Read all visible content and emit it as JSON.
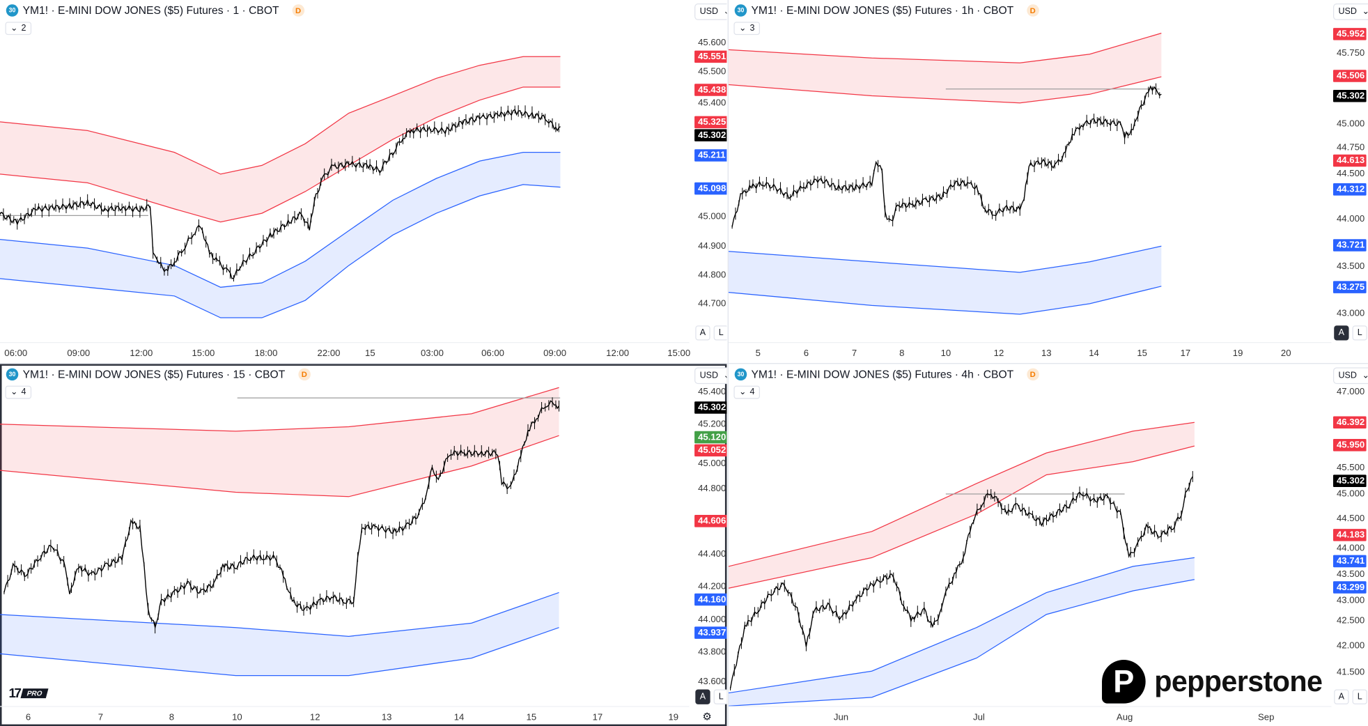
{
  "colors": {
    "red": "#f23645",
    "blue": "#2962ff",
    "green": "#43a047",
    "black": "#000000",
    "red_fill": "rgba(242,54,69,0.12)",
    "blue_fill": "rgba(41,98,255,0.12)"
  },
  "panels": [
    {
      "symbol_badge": "30",
      "title": "YM1! · E-MINI DOW JONES ($5) Futures · 1 · CBOT",
      "d_badge": "D",
      "collapse_count": "2",
      "currency": "USD",
      "a_label": "A",
      "l_label": "L",
      "ylim": [
        44.568,
        45.747
      ],
      "price_ticks": [
        "45.600",
        "45.500",
        "45.400",
        "45.000",
        "44.900",
        "44.800",
        "44.700"
      ],
      "badges": [
        {
          "value": "45.551",
          "color": "#f23645"
        },
        {
          "value": "45.438",
          "color": "#f23645"
        },
        {
          "value": "45.325",
          "color": "#f23645"
        },
        {
          "value": "45.302",
          "color": "#000000"
        },
        {
          "value": "45.211",
          "color": "#2962ff"
        },
        {
          "value": "45.098",
          "color": "#2962ff"
        }
      ],
      "x_ticks": [
        {
          "label": "06:00",
          "at": 2.3
        },
        {
          "label": "09:00",
          "at": 11.4
        },
        {
          "label": "12:00",
          "at": 20.5
        },
        {
          "label": "15:00",
          "at": 29.5
        },
        {
          "label": "18:00",
          "at": 38.6
        },
        {
          "label": "22:00",
          "at": 47.7
        },
        {
          "label": "15",
          "at": 53.7
        },
        {
          "label": "03:00",
          "at": 62.7
        },
        {
          "label": "06:00",
          "at": 71.5
        },
        {
          "label": "09:00",
          "at": 80.5
        },
        {
          "label": "12:00",
          "at": 89.6
        },
        {
          "label": "15:00",
          "at": 98.5
        }
      ],
      "series": {
        "x": [
          0,
          2.5,
          5.1,
          7.6,
          10.1,
          12.7,
          15.2,
          17.7,
          20.3,
          21.8,
          22.2,
          22.8,
          24.1,
          25.3,
          26.6,
          27.8,
          29.1,
          30.4,
          31.6,
          32.9,
          33.9,
          34.8,
          36.7,
          39.2,
          41.8,
          43.7,
          44.9,
          45.6,
          46.8,
          48.1,
          50.6,
          53.2,
          55.1,
          57,
          58.2,
          59.5,
          62,
          64.6,
          67.1,
          69.6,
          72.2,
          74.7,
          77.2,
          79.1,
          80.4,
          81.3
        ],
        "close": [
          45.01,
          44.98,
          45.025,
          45.031,
          45.037,
          45.049,
          45.025,
          45.031,
          45.025,
          45.037,
          44.875,
          44.845,
          44.814,
          44.845,
          44.89,
          44.935,
          44.971,
          44.875,
          44.845,
          44.814,
          44.79,
          44.829,
          44.875,
          44.935,
          44.98,
          45.01,
          44.959,
          45.055,
          45.13,
          45.17,
          45.182,
          45.176,
          45.161,
          45.221,
          45.266,
          45.296,
          45.302,
          45.296,
          45.326,
          45.341,
          45.35,
          45.362,
          45.35,
          45.341,
          45.311,
          45.302
        ]
      },
      "bands": {
        "x": [
          0,
          12.7,
          25.3,
          32,
          38,
          44.3,
          50.6,
          57,
          63.3,
          69.6,
          75.9,
          81.3
        ],
        "upper_top": [
          45.327,
          45.297,
          45.222,
          45.147,
          45.177,
          45.252,
          45.357,
          45.417,
          45.477,
          45.522,
          45.552,
          45.552
        ],
        "upper_bottom": [
          45.147,
          45.117,
          45.027,
          44.982,
          45.012,
          45.087,
          45.177,
          45.267,
          45.342,
          45.402,
          45.447,
          45.447
        ],
        "lower_top": [
          44.922,
          44.892,
          44.832,
          44.757,
          44.772,
          44.847,
          44.952,
          45.057,
          45.132,
          45.192,
          45.222,
          45.222
        ],
        "lower_bottom": [
          44.787,
          44.757,
          44.727,
          44.652,
          44.652,
          44.712,
          44.832,
          44.937,
          45.012,
          45.072,
          45.111,
          45.102
        ]
      }
    },
    {
      "symbol_badge": "30",
      "title": "YM1! · E-MINI DOW JONES ($5) Futures · 1h · CBOT",
      "d_badge": "D",
      "collapse_count": "3",
      "currency": "USD",
      "a_label": "A",
      "l_label": "L",
      "ylim": [
        42.695,
        46.313
      ],
      "price_ticks": [
        "45.750",
        "45.000",
        "44.750",
        "44.500",
        "44.000",
        "43.500",
        "43.000"
      ],
      "badges": [
        {
          "value": "45.952",
          "color": "#f23645"
        },
        {
          "value": "45.506",
          "color": "#f23645"
        },
        {
          "value": "45.302",
          "color": "#000000"
        },
        {
          "value": "44.613",
          "color": "#f23645"
        },
        {
          "value": "44.312",
          "color": "#2962ff"
        },
        {
          "value": "43.721",
          "color": "#2962ff"
        },
        {
          "value": "43.275",
          "color": "#2962ff"
        }
      ],
      "x_ticks": [
        {
          "label": "5",
          "at": 4.9
        },
        {
          "label": "6",
          "at": 12.9
        },
        {
          "label": "7",
          "at": 20.9
        },
        {
          "label": "8",
          "at": 28.8
        },
        {
          "label": "10",
          "at": 36.1
        },
        {
          "label": "12",
          "at": 44.9
        },
        {
          "label": "13",
          "at": 52.8
        },
        {
          "label": "14",
          "at": 60.7
        },
        {
          "label": "15",
          "at": 68.7
        },
        {
          "label": "17",
          "at": 75.9
        },
        {
          "label": "19",
          "at": 84.6
        },
        {
          "label": "20",
          "at": 92.6
        }
      ],
      "series": {
        "x": [
          0.6,
          2,
          3.5,
          5.7,
          7.8,
          10,
          12.2,
          15.1,
          18,
          20.9,
          23.8,
          24.5,
          25.5,
          26,
          27,
          28.1,
          30.3,
          32.5,
          35.4,
          37.5,
          39.7,
          41.2,
          42.6,
          44.1,
          46.2,
          48.4,
          49.1,
          49.9,
          52,
          54.2,
          55.7,
          57.1,
          58.6,
          60.7,
          62.9,
          65.1,
          65.8,
          67.2,
          68,
          69.4,
          70.1,
          71.3,
          71.9
        ],
        "close": [
          43.913,
          44.236,
          44.329,
          44.375,
          44.329,
          44.236,
          44.329,
          44.421,
          44.329,
          44.329,
          44.375,
          44.578,
          44.513,
          44.052,
          43.959,
          44.144,
          44.144,
          44.19,
          44.236,
          44.375,
          44.375,
          44.329,
          44.098,
          44.052,
          44.116,
          44.098,
          44.236,
          44.559,
          44.605,
          44.559,
          44.67,
          44.882,
          44.993,
          45.039,
          45.021,
          45.002,
          44.882,
          44.929,
          45.113,
          45.298,
          45.372,
          45.362,
          45.302
        ]
      },
      "bands": {
        "x": [
          0,
          23.8,
          48.4,
          60,
          71.9
        ],
        "upper_top": [
          45.787,
          45.7,
          45.648,
          45.74,
          45.962
        ],
        "upper_bottom": [
          45.418,
          45.3,
          45.224,
          45.316,
          45.501
        ],
        "lower_top": [
          43.655,
          43.544,
          43.433,
          43.544,
          43.71
        ],
        "lower_bottom": [
          43.221,
          43.083,
          42.99,
          43.101,
          43.286
        ]
      }
    },
    {
      "symbol_badge": "30",
      "title": "YM1! · E-MINI DOW JONES ($5) Futures · 15 · CBOT",
      "d_badge": "D",
      "collapse_count": "4",
      "currency": "USD",
      "a_label": "A",
      "l_label": "L",
      "ylim": [
        43.468,
        45.569
      ],
      "price_ticks": [
        "45.400",
        "45.200",
        "45.000",
        "44.800",
        "44.400",
        "44.200",
        "44.000",
        "43.800",
        "43.600"
      ],
      "badges": [
        {
          "value": "45.302",
          "color": "#000000"
        },
        {
          "value": "45.120",
          "color": "#43a047"
        },
        {
          "value": "45.052",
          "color": "#f23645"
        },
        {
          "value": "44.606",
          "color": "#f23645"
        },
        {
          "value": "44.160",
          "color": "#2962ff"
        },
        {
          "value": "43.937",
          "color": "#2962ff"
        }
      ],
      "x_ticks": [
        {
          "label": "6",
          "at": 4.1
        },
        {
          "label": "7",
          "at": 14.6
        },
        {
          "label": "8",
          "at": 24.9
        },
        {
          "label": "10",
          "at": 34.4
        },
        {
          "label": "12",
          "at": 45.7
        },
        {
          "label": "13",
          "at": 56.1
        },
        {
          "label": "14",
          "at": 66.6
        },
        {
          "label": "15",
          "at": 77.1
        },
        {
          "label": "17",
          "at": 86.7
        },
        {
          "label": "19",
          "at": 97.7
        }
      ],
      "series": {
        "x": [
          0.6,
          1.9,
          3.8,
          5.7,
          7.6,
          9.5,
          10.1,
          11.4,
          13.3,
          15.2,
          17.7,
          19,
          20.3,
          20.9,
          21.5,
          22.5,
          23.4,
          25.3,
          27.2,
          29.1,
          31,
          32.3,
          34.2,
          36.1,
          38,
          39.9,
          41.1,
          42.4,
          44.3,
          46.2,
          48.1,
          50,
          51.3,
          51.9,
          52.5,
          54.4,
          57,
          58.9,
          60.8,
          62,
          62.7,
          63.3,
          63.9,
          65.2,
          67.1,
          69.6,
          72.2,
          72.8,
          74.1,
          75.3,
          76.6,
          77.8,
          79.1,
          80.4,
          81.1
        ],
        "close": [
          44.165,
          44.325,
          44.272,
          44.379,
          44.459,
          44.325,
          44.165,
          44.325,
          44.272,
          44.325,
          44.379,
          44.593,
          44.567,
          44.325,
          44.057,
          43.95,
          44.111,
          44.165,
          44.218,
          44.165,
          44.218,
          44.325,
          44.325,
          44.379,
          44.379,
          44.379,
          44.272,
          44.111,
          44.057,
          44.111,
          44.138,
          44.111,
          44.111,
          44.379,
          44.567,
          44.567,
          44.54,
          44.567,
          44.647,
          44.781,
          44.942,
          44.861,
          44.888,
          45.022,
          45.022,
          45.022,
          45.022,
          44.835,
          44.808,
          44.969,
          45.156,
          45.236,
          45.317,
          45.333,
          45.302
        ]
      },
      "bands": {
        "x": [
          0,
          34.2,
          50.6,
          68.4,
          81.1
        ],
        "upper_top": [
          45.199,
          45.156,
          45.183,
          45.263,
          45.424
        ],
        "upper_bottom": [
          44.915,
          44.781,
          44.754,
          44.942,
          45.129
        ],
        "lower_top": [
          44.03,
          43.95,
          43.896,
          43.977,
          44.165
        ],
        "lower_bottom": [
          43.789,
          43.655,
          43.655,
          43.762,
          43.95
        ]
      },
      "logo_text": "TV PRO"
    },
    {
      "symbol_badge": "30",
      "title": "YM1! · E-MINI DOW JONES ($5) Futures · 4h · CBOT",
      "d_badge": "D",
      "collapse_count": "4",
      "currency": "USD",
      "a_label": "A",
      "l_label": "L",
      "ylim": [
        40.825,
        47.54
      ],
      "price_ticks": [
        "47.000",
        "45.500",
        "45.000",
        "44.500",
        "44.000",
        "43.500",
        "43.000",
        "42.500",
        "42.000",
        "41.500"
      ],
      "badges": [
        {
          "value": "46.392",
          "color": "#f23645"
        },
        {
          "value": "45.950",
          "color": "#f23645"
        },
        {
          "value": "45.302",
          "color": "#000000"
        },
        {
          "value": "44.183",
          "color": "#f23645"
        },
        {
          "value": "43.741",
          "color": "#2962ff"
        },
        {
          "value": "43.299",
          "color": "#2962ff"
        }
      ],
      "x_ticks": [
        {
          "label": "Jun",
          "at": 18.7
        },
        {
          "label": "Jul",
          "at": 41.6
        },
        {
          "label": "Aug",
          "at": 65.8
        },
        {
          "label": "Sep",
          "at": 89.3
        }
      ],
      "series": {
        "x": [
          0.3,
          1.3,
          2.7,
          4.9,
          7.1,
          9.3,
          11.4,
          12.9,
          14.3,
          16.5,
          18.7,
          20.9,
          23,
          25.2,
          27.4,
          28.8,
          30.3,
          32.5,
          33.9,
          35.4,
          36.1,
          37.5,
          39,
          40.4,
          41.9,
          43.3,
          44.8,
          46.2,
          47.7,
          49.9,
          52,
          54.2,
          56.4,
          58.6,
          60.7,
          62.9,
          65.1,
          66.5,
          68,
          69.4,
          71.6,
          73.8,
          75.2,
          75.9,
          77.1
        ],
        "close": [
          41.167,
          41.681,
          42.366,
          42.709,
          43.051,
          43.223,
          42.709,
          42.023,
          42.709,
          42.794,
          42.537,
          42.88,
          43.137,
          43.308,
          43.394,
          42.88,
          42.537,
          42.709,
          42.366,
          42.709,
          43.051,
          43.394,
          43.737,
          44.422,
          44.764,
          45.021,
          44.85,
          44.593,
          44.764,
          44.593,
          44.422,
          44.593,
          44.764,
          45.021,
          44.85,
          44.936,
          44.593,
          43.737,
          43.994,
          44.336,
          44.165,
          44.336,
          44.593,
          45.021,
          45.302
        ]
      },
      "bands": {
        "x": [
          0,
          23.8,
          41.2,
          52.8,
          67.2,
          77.4
        ],
        "upper_top": [
          43.566,
          44.251,
          45.193,
          45.792,
          46.221,
          46.392
        ],
        "upper_bottom": [
          43.137,
          43.737,
          44.593,
          45.364,
          45.621,
          45.929
        ],
        "lower_top": [
          41.082,
          41.51,
          42.366,
          43.051,
          43.566,
          43.737
        ],
        "lower_bottom": [
          40.825,
          40.996,
          41.767,
          42.623,
          43.086,
          43.309
        ]
      },
      "watermark": "pepperstone"
    }
  ]
}
